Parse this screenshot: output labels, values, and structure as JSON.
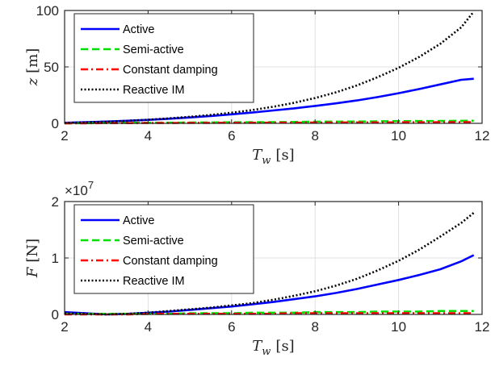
{
  "colors": {
    "active": "#0000ff",
    "semi_active": "#00dd00",
    "constant_damping": "#ff0000",
    "reactive_im": "#000000",
    "grid": "#e0e0e0",
    "axis": "#262626"
  },
  "chart_data": [
    {
      "type": "line",
      "xlabel_var": "T",
      "xlabel_sub": "w",
      "xlabel_unit": "[s]",
      "ylabel_var": "z",
      "ylabel_unit": "[m]",
      "xlim": [
        2,
        12
      ],
      "ylim": [
        0,
        100
      ],
      "xticks": [
        "2",
        "4",
        "6",
        "8",
        "10",
        "12"
      ],
      "yticks": [
        "0",
        "50",
        "100"
      ],
      "ytick_values": [
        0,
        50,
        100
      ],
      "multiplier": "",
      "grid": true,
      "legend_position": "top-left",
      "x": [
        2,
        2.5,
        3,
        3.5,
        4,
        4.5,
        5,
        5.5,
        6,
        6.5,
        7,
        7.5,
        8,
        8.5,
        9,
        9.5,
        10,
        10.5,
        11,
        11.5,
        11.8
      ],
      "series": [
        {
          "name": "Active",
          "style": "solid",
          "color_key": "active",
          "values": [
            0.5,
            1.0,
            1.6,
            2.3,
            3.1,
            4.1,
            5.2,
            6.5,
            8.0,
            9.6,
            11.4,
            13.3,
            15.4,
            17.7,
            20.3,
            23.3,
            26.7,
            30.4,
            34.5,
            38.6,
            39.5
          ]
        },
        {
          "name": "Semi-active",
          "style": "dashed",
          "color_key": "semi_active",
          "values": [
            0.1,
            0.2,
            0.3,
            0.4,
            0.5,
            0.6,
            0.7,
            0.8,
            0.9,
            1.0,
            1.1,
            1.2,
            1.4,
            1.5,
            1.6,
            1.8,
            1.9,
            2.0,
            2.1,
            2.2,
            2.3
          ]
        },
        {
          "name": "Constant damping",
          "style": "dashdot",
          "color_key": "constant_damping",
          "values": [
            0.1,
            0.1,
            0.2,
            0.2,
            0.3,
            0.3,
            0.4,
            0.4,
            0.5,
            0.5,
            0.6,
            0.6,
            0.7,
            0.7,
            0.8,
            0.8,
            0.9,
            0.9,
            1.0,
            1.0,
            1.0
          ]
        },
        {
          "name": "Reactive IM",
          "style": "dotted",
          "color_key": "reactive_im",
          "values": [
            0.3,
            0.8,
            1.4,
            2.2,
            3.2,
            4.4,
            5.8,
            7.4,
            9.4,
            11.8,
            14.7,
            18.2,
            22.4,
            27.5,
            33.6,
            40.9,
            49.2,
            59.0,
            70.5,
            85.0,
            99.0
          ]
        }
      ]
    },
    {
      "type": "line",
      "xlabel_var": "T",
      "xlabel_sub": "w",
      "xlabel_unit": "[s]",
      "ylabel_var": "F",
      "ylabel_unit": "[N]",
      "xlim": [
        2,
        12
      ],
      "ylim": [
        0,
        2
      ],
      "xticks": [
        "2",
        "4",
        "6",
        "8",
        "10",
        "12"
      ],
      "yticks": [
        "0",
        "1",
        "2"
      ],
      "ytick_values": [
        0,
        1,
        2
      ],
      "multiplier_base": "×10",
      "multiplier_exp": "7",
      "grid": true,
      "legend_position": "top-left",
      "x": [
        2,
        2.5,
        3,
        3.5,
        4,
        4.5,
        5,
        5.5,
        6,
        6.5,
        7,
        7.5,
        8,
        8.5,
        9,
        9.5,
        10,
        10.5,
        11,
        11.5,
        11.8
      ],
      "series": [
        {
          "name": "Active",
          "style": "solid",
          "color_key": "active",
          "values": [
            0.04,
            0.02,
            0.0,
            0.01,
            0.03,
            0.05,
            0.08,
            0.11,
            0.14,
            0.18,
            0.22,
            0.27,
            0.32,
            0.38,
            0.45,
            0.53,
            0.61,
            0.7,
            0.8,
            0.94,
            1.05
          ]
        },
        {
          "name": "Semi-active",
          "style": "dashed",
          "color_key": "semi_active",
          "values": [
            0.01,
            0.01,
            0.01,
            0.01,
            0.01,
            0.01,
            0.02,
            0.02,
            0.02,
            0.03,
            0.03,
            0.03,
            0.04,
            0.04,
            0.04,
            0.05,
            0.05,
            0.05,
            0.06,
            0.06,
            0.06
          ]
        },
        {
          "name": "Constant damping",
          "style": "dashdot",
          "color_key": "constant_damping",
          "values": [
            0.0,
            0.0,
            0.0,
            0.0,
            0.01,
            0.01,
            0.01,
            0.01,
            0.01,
            0.01,
            0.01,
            0.02,
            0.02,
            0.02,
            0.02,
            0.02,
            0.02,
            0.02,
            0.02,
            0.02,
            0.02
          ]
        },
        {
          "name": "Reactive IM",
          "style": "dotted",
          "color_key": "reactive_im",
          "values": [
            0.02,
            0.01,
            0.0,
            0.01,
            0.03,
            0.06,
            0.09,
            0.12,
            0.16,
            0.2,
            0.26,
            0.33,
            0.41,
            0.51,
            0.63,
            0.78,
            0.95,
            1.15,
            1.38,
            1.62,
            1.8
          ]
        }
      ]
    }
  ]
}
